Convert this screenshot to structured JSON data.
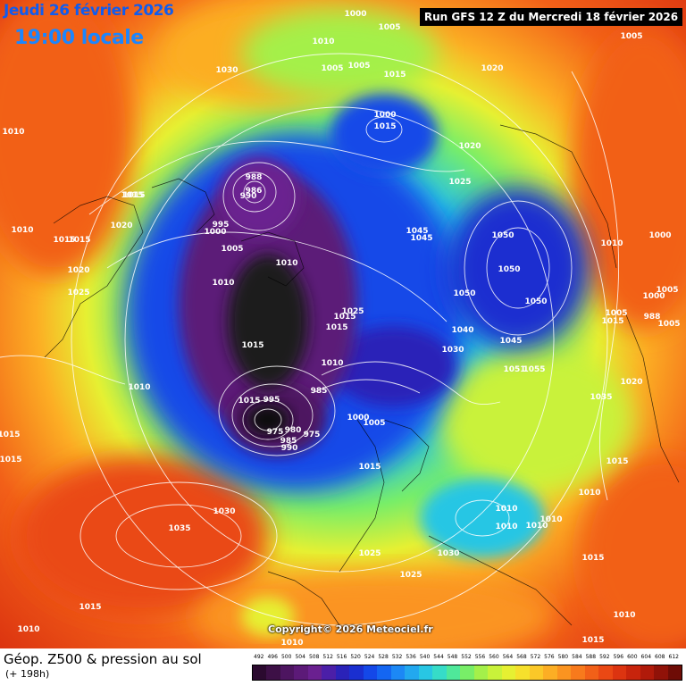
{
  "header": {
    "date": "Jeudi 26 février 2026",
    "local_time": "19:00 locale",
    "run_info": "Run GFS 12 Z du Mercredi 18 février 2026"
  },
  "copyright": "Copyright© 2026 Meteociel.fr",
  "footer": {
    "title": "Géop. Z500 & pression au sol",
    "subtitle": "(+ 198h)"
  },
  "pressure_labels": [
    {
      "text": "1000"
    },
    {
      "text": "1005"
    },
    {
      "text": "1010"
    },
    {
      "text": "1005"
    },
    {
      "text": "1005"
    },
    {
      "text": "1015"
    },
    {
      "text": "1020"
    },
    {
      "text": "1005"
    },
    {
      "text": "1030"
    },
    {
      "text": "1010"
    },
    {
      "text": "1000"
    },
    {
      "text": "1015"
    },
    {
      "text": "1020"
    },
    {
      "text": "1025"
    },
    {
      "text": "1015"
    },
    {
      "text": "988"
    },
    {
      "text": "986"
    },
    {
      "text": "990"
    },
    {
      "text": "995"
    },
    {
      "text": "1000"
    },
    {
      "text": "1005"
    },
    {
      "text": "1010"
    },
    {
      "text": "1010"
    },
    {
      "text": "1010"
    },
    {
      "text": "1015"
    },
    {
      "text": "1020"
    },
    {
      "text": "1015"
    },
    {
      "text": "1015"
    },
    {
      "text": "1020"
    },
    {
      "text": "1025"
    },
    {
      "text": "1045"
    },
    {
      "text": "1045"
    },
    {
      "text": "1050"
    },
    {
      "text": "1050"
    },
    {
      "text": "1050"
    },
    {
      "text": "1050"
    },
    {
      "text": "1010"
    },
    {
      "text": "1000"
    },
    {
      "text": "1025"
    },
    {
      "text": "1015"
    },
    {
      "text": "1015"
    },
    {
      "text": "1040"
    },
    {
      "text": "1030"
    },
    {
      "text": "1045"
    },
    {
      "text": "1005"
    },
    {
      "text": "1015"
    },
    {
      "text": "1000"
    },
    {
      "text": "988"
    },
    {
      "text": "1005"
    },
    {
      "text": "1005"
    },
    {
      "text": "1010"
    },
    {
      "text": "1051"
    },
    {
      "text": "1055"
    },
    {
      "text": "1035"
    },
    {
      "text": "1020"
    },
    {
      "text": "1015"
    },
    {
      "text": "1015"
    },
    {
      "text": "1015"
    },
    {
      "text": "985"
    },
    {
      "text": "975"
    },
    {
      "text": "980"
    },
    {
      "text": "985"
    },
    {
      "text": "990"
    },
    {
      "text": "975"
    },
    {
      "text": "1015"
    },
    {
      "text": "995"
    },
    {
      "text": "1000"
    },
    {
      "text": "1005"
    },
    {
      "text": "1015"
    },
    {
      "text": "1010"
    },
    {
      "text": "1015"
    },
    {
      "text": "1030"
    },
    {
      "text": "1035"
    },
    {
      "text": "1025"
    },
    {
      "text": "1025"
    },
    {
      "text": "1030"
    },
    {
      "text": "1010"
    },
    {
      "text": "1010"
    },
    {
      "text": "1010"
    },
    {
      "text": "1010"
    },
    {
      "text": "1010"
    },
    {
      "text": "1015"
    },
    {
      "text": "1010"
    },
    {
      "text": "1015"
    },
    {
      "text": "1010"
    },
    {
      "text": "1010"
    },
    {
      "text": "1015"
    }
  ],
  "legend": {
    "values": [
      "492",
      "496",
      "500",
      "504",
      "508",
      "512",
      "516",
      "520",
      "524",
      "528",
      "532",
      "536",
      "540",
      "544",
      "548",
      "552",
      "556",
      "560",
      "564",
      "568",
      "572",
      "576",
      "580",
      "584",
      "588",
      "592",
      "596",
      "600",
      "604",
      "608",
      "612"
    ],
    "colors": [
      "#2b0a2f",
      "#3d1046",
      "#4d1560",
      "#5c1a78",
      "#6a2090",
      "#4b1fa8",
      "#2a22b8",
      "#1a2fd0",
      "#1448e8",
      "#1466f2",
      "#1c88f5",
      "#22a8ef",
      "#28c6e4",
      "#36dcc8",
      "#4fe89a",
      "#78ee68",
      "#a4f04a",
      "#c9f23a",
      "#e6f032",
      "#f6e02c",
      "#fbc828",
      "#fcae24",
      "#fb9420",
      "#f87a1c",
      "#f26018",
      "#ea4814",
      "#dc3410",
      "#c8240c",
      "#b01a0a",
      "#901208",
      "#6e0c06"
    ]
  },
  "colors": {
    "trough": "#1a1a1a",
    "low": "#5c1a78",
    "mid": "#1448e8",
    "ridge_edge": "#78ee68",
    "warm": "#f87a1c",
    "isobar": "#ffffff"
  }
}
